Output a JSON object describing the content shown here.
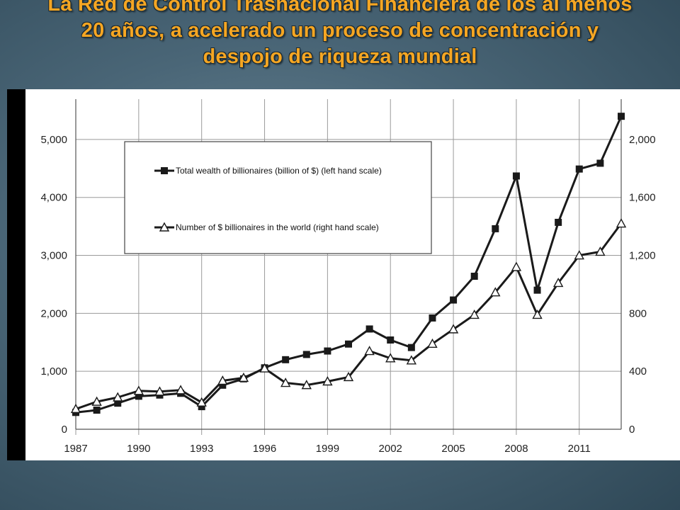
{
  "slide": {
    "title_lines": [
      "La Red de Control Trasnacional Financiera de los al menos",
      "20 años, a acelerado un proceso de concentración y",
      "despojo de riqueza mundial"
    ]
  },
  "colors": {
    "title": "#f5a623",
    "series_line": "#1a1a1a",
    "grid": "#9a9a9a"
  },
  "chart_data": {
    "type": "line",
    "x": [
      1987,
      1988,
      1989,
      1990,
      1991,
      1992,
      1993,
      1994,
      1995,
      1996,
      1997,
      1998,
      1999,
      2000,
      2001,
      2002,
      2003,
      2004,
      2005,
      2006,
      2007,
      2008,
      2009,
      2010,
      2011,
      2012,
      2013
    ],
    "x_tick_labels": [
      "1987",
      "1990",
      "1993",
      "1996",
      "1999",
      "2002",
      "2005",
      "2008",
      "2011"
    ],
    "y_left_ticks": [
      "0",
      "1,000",
      "2,000",
      "3,000",
      "4,000",
      "5,000"
    ],
    "y_right_ticks": [
      "0",
      "400",
      "800",
      "1,200",
      "1,600",
      "2,000"
    ],
    "y_left_lim": [
      0,
      5500
    ],
    "y_right_lim": [
      0,
      2200
    ],
    "grid": true,
    "legend_position": "top-left",
    "series": [
      {
        "name": "Total wealth of billionaires (billion of $) (left hand scale)",
        "axis": "left",
        "marker": "filled-square",
        "values": [
          290,
          330,
          450,
          570,
          590,
          620,
          390,
          760,
          870,
          1060,
          1200,
          1290,
          1350,
          1470,
          1730,
          1540,
          1410,
          1920,
          2230,
          2640,
          3460,
          4370,
          2400,
          3570,
          4490,
          4590,
          5400
        ]
      },
      {
        "name": "Number of $ billionaires in the world (right hand scale)",
        "axis": "right",
        "marker": "open-triangle",
        "values": [
          140,
          190,
          220,
          265,
          260,
          270,
          185,
          335,
          355,
          420,
          320,
          305,
          330,
          360,
          540,
          490,
          475,
          590,
          690,
          790,
          945,
          1120,
          790,
          1010,
          1200,
          1225,
          1420
        ]
      }
    ]
  }
}
